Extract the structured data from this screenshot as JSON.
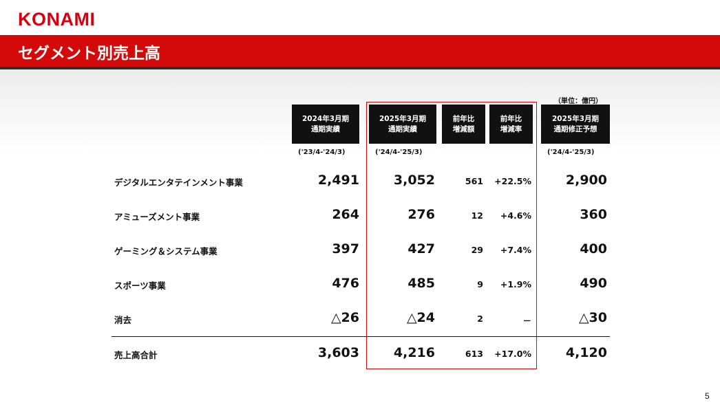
{
  "brand": {
    "logo_text": "KONAMI",
    "brand_color": "#d7000f"
  },
  "slide": {
    "title": "セグメント別売上高",
    "page_number": "5",
    "banner_color": "#d40a0a"
  },
  "unit_note": "（単位：億円）",
  "columns": [
    {
      "line1": "2024年3月期",
      "line2": "通期実績",
      "period": "('23/4-'24/3)"
    },
    {
      "line1": "2025年3月期",
      "line2": "通期実績",
      "period": "('24/4-'25/3)"
    },
    {
      "line1": "前年比",
      "line2": "増減額",
      "period": ""
    },
    {
      "line1": "前年比",
      "line2": "増減率",
      "period": ""
    },
    {
      "line1": "2025年3月期",
      "line2": "通期修正予想",
      "period": "('24/4-'25/3)"
    }
  ],
  "rows": [
    {
      "label": "デジタルエンタテインメント事業",
      "fy2024": "2,491",
      "fy2025": "3,052",
      "diff": "561",
      "rate": "+22.5%",
      "forecast": "2,900"
    },
    {
      "label": "アミューズメント事業",
      "fy2024": "264",
      "fy2025": "276",
      "diff": "12",
      "rate": "+4.6%",
      "forecast": "360"
    },
    {
      "label": "ゲーミング＆システム事業",
      "fy2024": "397",
      "fy2025": "427",
      "diff": "29",
      "rate": "+7.4%",
      "forecast": "400"
    },
    {
      "label": "スポーツ事業",
      "fy2024": "476",
      "fy2025": "485",
      "diff": "9",
      "rate": "+1.9%",
      "forecast": "490"
    },
    {
      "label": "消去",
      "fy2024": "△26",
      "fy2025": "△24",
      "diff": "2",
      "rate": "－",
      "forecast": "△30"
    },
    {
      "label": "売上高合計",
      "fy2024": "3,603",
      "fy2025": "4,216",
      "diff": "613",
      "rate": "+17.0%",
      "forecast": "4,120"
    }
  ]
}
